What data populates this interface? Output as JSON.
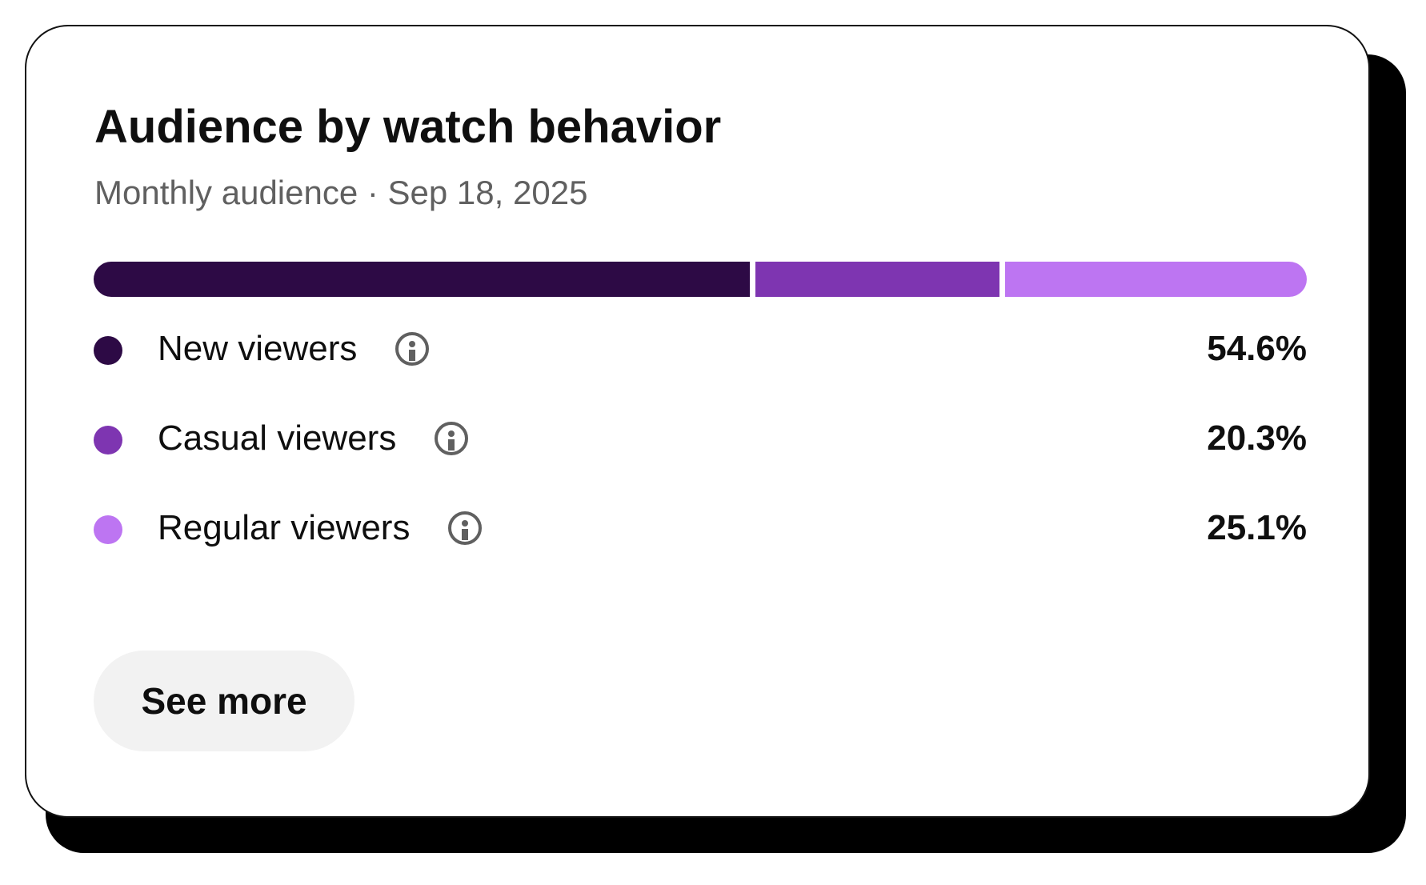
{
  "card": {
    "title": "Audience by watch behavior",
    "subtitle": "Monthly audience · Sep 18, 2025"
  },
  "chart_data": {
    "type": "bar",
    "orientation": "horizontal-stacked",
    "categories": [
      "New viewers",
      "Casual viewers",
      "Regular viewers"
    ],
    "values": [
      54.6,
      20.3,
      25.1
    ],
    "value_labels": [
      "54.6%",
      "20.3%",
      "25.1%"
    ],
    "colors": [
      "#2d0a45",
      "#7e35b1",
      "#bd75f2"
    ],
    "unit": "%",
    "title": "Audience by watch behavior"
  },
  "legend": [
    {
      "label": "New viewers",
      "value": "54.6%",
      "color": "#2d0a45",
      "icon": "info-icon"
    },
    {
      "label": "Casual viewers",
      "value": "20.3%",
      "color": "#7e35b1",
      "icon": "info-icon"
    },
    {
      "label": "Regular viewers",
      "value": "25.1%",
      "color": "#bd75f2",
      "icon": "info-icon"
    }
  ],
  "actions": {
    "see_more_label": "See more"
  }
}
